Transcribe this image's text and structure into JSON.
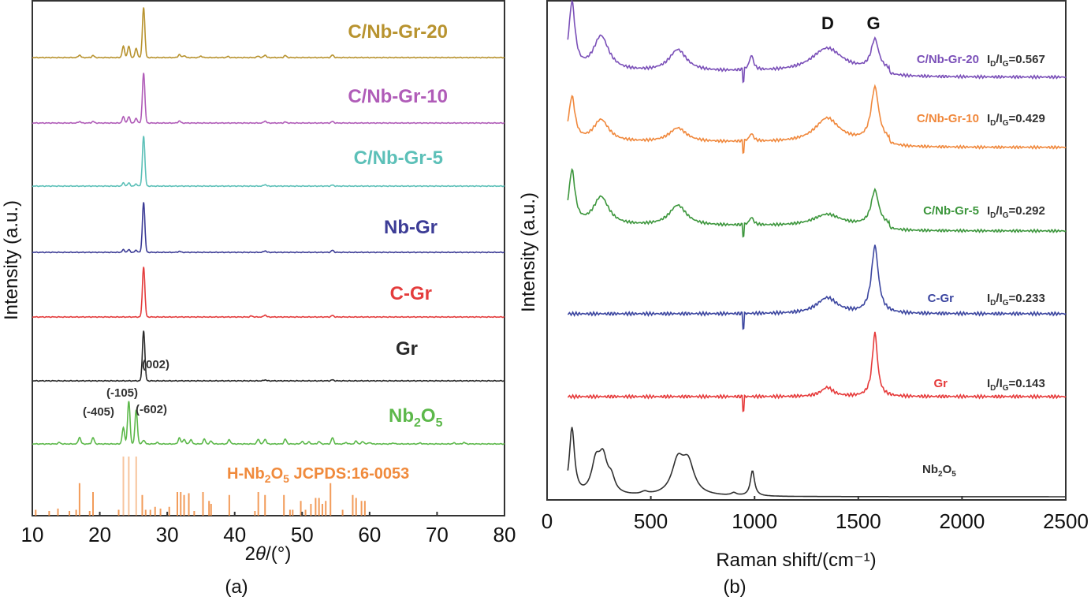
{
  "chart_data": [
    {
      "panel": "(a)",
      "type": "line",
      "title": "",
      "xlabel": "2θ/(°)",
      "ylabel": "Intensity (a.u.)",
      "xlim": [
        10,
        80
      ],
      "xticks": [
        10,
        20,
        30,
        40,
        50,
        60,
        70,
        80
      ],
      "grid": false,
      "series": [
        {
          "name": "C/Nb-Gr-20",
          "color": "#b8932f",
          "peaks": [
            [
              17,
              0.05
            ],
            [
              19,
              0.04
            ],
            [
              23.5,
              0.22
            ],
            [
              24.3,
              0.22
            ],
            [
              25.4,
              0.18
            ],
            [
              26.5,
              1.0
            ],
            [
              31.8,
              0.06
            ],
            [
              32.5,
              0.04
            ],
            [
              35,
              0.03
            ],
            [
              39,
              0.02
            ],
            [
              43.5,
              0.03
            ],
            [
              44.5,
              0.05
            ],
            [
              47.5,
              0.04
            ],
            [
              54.5,
              0.05
            ]
          ]
        },
        {
          "name": "C/Nb-Gr-10",
          "color": "#b05cb8",
          "peaks": [
            [
              17,
              0.03
            ],
            [
              19,
              0.03
            ],
            [
              23.5,
              0.12
            ],
            [
              24.3,
              0.12
            ],
            [
              25.4,
              0.09
            ],
            [
              26.5,
              1.0
            ],
            [
              31.8,
              0.04
            ],
            [
              44.5,
              0.04
            ],
            [
              47.5,
              0.02
            ],
            [
              54.5,
              0.03
            ]
          ]
        },
        {
          "name": "C/Nb-Gr-5",
          "color": "#5cc0b8",
          "peaks": [
            [
              23.5,
              0.06
            ],
            [
              24.3,
              0.06
            ],
            [
              25.4,
              0.04
            ],
            [
              26.5,
              1.0
            ],
            [
              44.5,
              0.03
            ],
            [
              54.5,
              0.02
            ]
          ]
        },
        {
          "name": "Nb-Gr",
          "color": "#3c3c96",
          "peaks": [
            [
              23.5,
              0.05
            ],
            [
              24.3,
              0.05
            ],
            [
              25.4,
              0.04
            ],
            [
              26.5,
              1.0
            ],
            [
              31.8,
              0.02
            ],
            [
              44.5,
              0.03
            ],
            [
              54.5,
              0.04
            ]
          ]
        },
        {
          "name": "C-Gr",
          "color": "#e43c3c",
          "peaks": [
            [
              26.5,
              1.0
            ],
            [
              42.5,
              0.02
            ],
            [
              44.5,
              0.04
            ],
            [
              54.5,
              0.03
            ]
          ]
        },
        {
          "name": "Gr",
          "color": "#2a2a2a",
          "peaks": [
            [
              26.5,
              1.0
            ],
            [
              44.5,
              0.02
            ],
            [
              54.5,
              0.02
            ]
          ]
        },
        {
          "name": "Nb2O5",
          "color": "#5cb84a",
          "peaks": [
            [
              14,
              0.03
            ],
            [
              17,
              0.14
            ],
            [
              19,
              0.13
            ],
            [
              23.5,
              0.34
            ],
            [
              24.3,
              0.9
            ],
            [
              25.4,
              0.72
            ],
            [
              26.5,
              0.08
            ],
            [
              28.5,
              0.03
            ],
            [
              31.8,
              0.13
            ],
            [
              32.5,
              0.1
            ],
            [
              33.5,
              0.09
            ],
            [
              35.5,
              0.1
            ],
            [
              36.5,
              0.06
            ],
            [
              39.2,
              0.09
            ],
            [
              43.5,
              0.1
            ],
            [
              44.5,
              0.1
            ],
            [
              47.5,
              0.1
            ],
            [
              50,
              0.05
            ],
            [
              51,
              0.04
            ],
            [
              52.5,
              0.05
            ],
            [
              54.5,
              0.13
            ],
            [
              56.5,
              0.03
            ],
            [
              58,
              0.06
            ],
            [
              59,
              0.05
            ],
            [
              60,
              0.03
            ],
            [
              63.5,
              0.02
            ],
            [
              67.5,
              0.02
            ],
            [
              72.5,
              0.02
            ],
            [
              74,
              0.03
            ]
          ]
        }
      ],
      "series_labels": [
        "C/Nb-Gr-20",
        "C/Nb-Gr-10",
        "C/Nb-Gr-5",
        "Nb-Gr",
        "C-Gr",
        "Gr",
        "Nb2O5"
      ],
      "reference": {
        "name": "H-Nb2O5 JCPDS:16-0053",
        "color": "#f08a3c",
        "sticks": [
          [
            10.5,
            0.1
          ],
          [
            12.5,
            0.08
          ],
          [
            13.8,
            0.12
          ],
          [
            15.5,
            0.08
          ],
          [
            16.5,
            0.1
          ],
          [
            17,
            0.55
          ],
          [
            18.5,
            0.08
          ],
          [
            19,
            0.4
          ],
          [
            22.8,
            0.1
          ],
          [
            23.5,
            1.0
          ],
          [
            24.3,
            1.0
          ],
          [
            25.4,
            1.0
          ],
          [
            26.3,
            0.35
          ],
          [
            26.8,
            0.1
          ],
          [
            27.5,
            0.1
          ],
          [
            28.2,
            0.15
          ],
          [
            29,
            0.12
          ],
          [
            30.3,
            0.15
          ],
          [
            31.5,
            0.4
          ],
          [
            32,
            0.4
          ],
          [
            32.5,
            0.35
          ],
          [
            33.2,
            0.38
          ],
          [
            34,
            0.08
          ],
          [
            35.3,
            0.4
          ],
          [
            36.2,
            0.25
          ],
          [
            36.5,
            0.2
          ],
          [
            39.2,
            0.35
          ],
          [
            43,
            0.08
          ],
          [
            43.5,
            0.4
          ],
          [
            44.5,
            0.35
          ],
          [
            47.3,
            0.35
          ],
          [
            48.2,
            0.1
          ],
          [
            48.6,
            0.1
          ],
          [
            49.8,
            0.25
          ],
          [
            50.5,
            0.1
          ],
          [
            51.3,
            0.2
          ],
          [
            52,
            0.3
          ],
          [
            52.5,
            0.3
          ],
          [
            53,
            0.2
          ],
          [
            53.5,
            0.25
          ],
          [
            54.2,
            0.55
          ],
          [
            56,
            0.1
          ],
          [
            57.5,
            0.35
          ],
          [
            58,
            0.3
          ],
          [
            58.8,
            0.25
          ],
          [
            59.3,
            0.25
          ]
        ]
      },
      "annotations": [
        "(002)",
        "(-105)",
        "(-405)",
        "(-602)"
      ]
    },
    {
      "panel": "(b)",
      "type": "line",
      "title": "",
      "xlabel": "Raman shift/(cm⁻¹)",
      "ylabel": "Intensity (a.u.)",
      "xlim": [
        0,
        2500
      ],
      "xticks": [
        0,
        500,
        1000,
        1500,
        2000,
        2500
      ],
      "grid": false,
      "band_labels": [
        "D",
        "G"
      ],
      "series": [
        {
          "name": "C/Nb-Gr-20",
          "color": "#7a4fb8",
          "ratio": "I_D/I_G=0.567",
          "peaks": [
            [
              120,
              1.0,
              18
            ],
            [
              260,
              0.52,
              45
            ],
            [
              630,
              0.32,
              50
            ],
            [
              985,
              0.22,
              12
            ],
            [
              1350,
              0.35,
              90
            ],
            [
              1580,
              0.45,
              22
            ]
          ]
        },
        {
          "name": "C/Nb-Gr-10",
          "color": "#f0883c",
          "ratio": "I_D/I_G=0.429",
          "peaks": [
            [
              120,
              0.7,
              18
            ],
            [
              260,
              0.35,
              45
            ],
            [
              630,
              0.22,
              50
            ],
            [
              985,
              0.12,
              12
            ],
            [
              1350,
              0.38,
              70
            ],
            [
              1580,
              0.85,
              22
            ]
          ]
        },
        {
          "name": "C/Nb-Gr-5",
          "color": "#3c963c",
          "ratio": "I_D/I_G=0.292",
          "peaks": [
            [
              120,
              0.85,
              18
            ],
            [
              260,
              0.45,
              45
            ],
            [
              630,
              0.32,
              50
            ],
            [
              985,
              0.12,
              12
            ],
            [
              1350,
              0.18,
              80
            ],
            [
              1580,
              0.55,
              22
            ]
          ]
        },
        {
          "name": "C-Gr",
          "color": "#3c46a0",
          "ratio": "I_D/I_G=0.233",
          "peaks": [
            [
              1350,
              0.2,
              60
            ],
            [
              1580,
              0.85,
              20
            ]
          ]
        },
        {
          "name": "Gr",
          "color": "#e63a3a",
          "ratio": "I_D/I_G=0.143",
          "peaks": [
            [
              1350,
              0.12,
              35
            ],
            [
              1580,
              0.85,
              15
            ]
          ]
        },
        {
          "name": "Nb2O5",
          "color": "#303030",
          "ratio": "",
          "peaks": [
            [
              120,
              1.0,
              15
            ],
            [
              235,
              0.45,
              25
            ],
            [
              270,
              0.5,
              25
            ],
            [
              310,
              0.2,
              20
            ],
            [
              470,
              0.04,
              20
            ],
            [
              630,
              0.48,
              35
            ],
            [
              680,
              0.45,
              35
            ],
            [
              900,
              0.04,
              15
            ],
            [
              990,
              0.38,
              12
            ]
          ]
        }
      ]
    }
  ],
  "panel_labels": {
    "a": "(a)",
    "b": "(b)"
  }
}
